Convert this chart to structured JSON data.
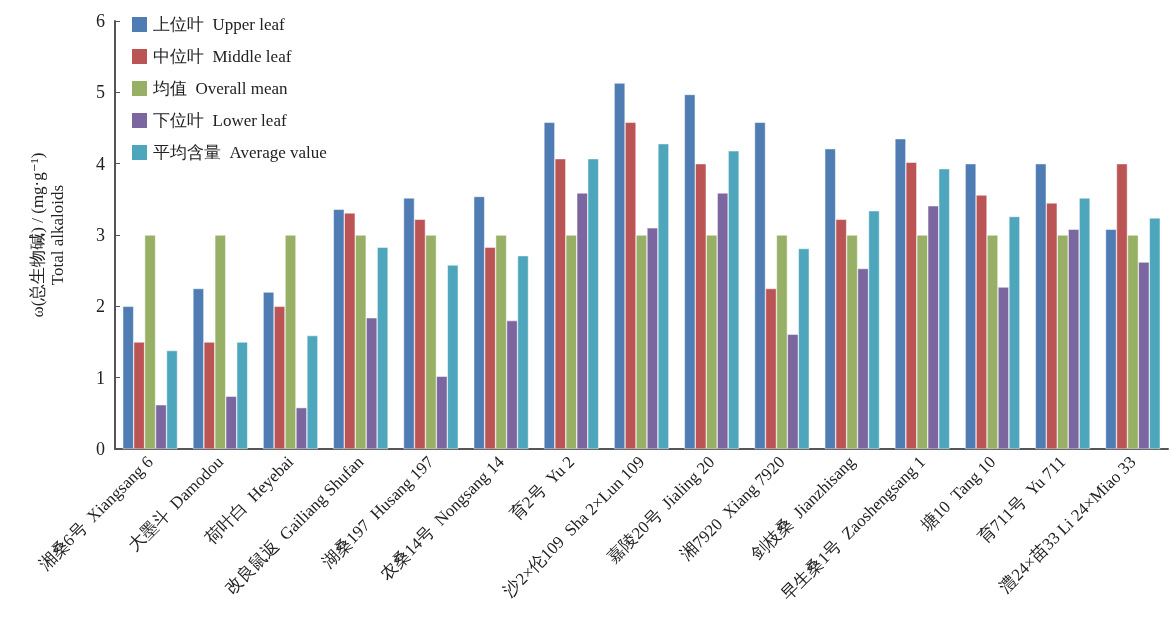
{
  "chart_data": {
    "type": "bar",
    "ylabel": "ω(总生物碱) / (mg·g⁻¹)\nTotal alkaloids",
    "categories": [
      "湘桑6号  Xiangsang 6",
      "大墨斗  Damodou",
      "荷叶白  Heyebai",
      "改良鼠返  Gailiang Shufan",
      "湖桑197  Husang 197",
      "农桑14号  Nongsang 14",
      "育2号  Yu 2",
      "沙2×伦109  Sha 2×Lun 109",
      "嘉陵20号  Jialing 20",
      "湘7920  Xiang 7920",
      "剑枝桑  Jianzhisang",
      "早生桑1号  Zaoshengsang 1",
      "塘10  Tang 10",
      "育711号  Yu 711",
      "澧24×苗33 Li 24×Miao 33"
    ],
    "series": [
      {
        "name": "上位叶  Upper leaf",
        "color": "#4f7db3",
        "values": [
          2.0,
          2.25,
          2.2,
          3.36,
          3.52,
          3.54,
          4.58,
          5.13,
          4.97,
          4.58,
          4.21,
          4.35,
          4.0,
          4.0,
          3.08
        ]
      },
      {
        "name": "中位叶  Middle leaf",
        "color": "#bb5455",
        "values": [
          1.5,
          1.5,
          2.0,
          3.31,
          3.22,
          2.83,
          4.07,
          4.58,
          4.0,
          2.25,
          3.22,
          4.02,
          3.56,
          3.45,
          4.0
        ]
      },
      {
        "name": "均值  Overall mean",
        "color": "#97b066",
        "values": [
          3,
          3,
          3,
          3,
          3,
          3,
          3,
          3,
          3,
          3,
          3,
          3,
          3,
          3,
          3
        ]
      },
      {
        "name": "下位叶  Lower leaf",
        "color": "#7b66a0",
        "values": [
          0.62,
          0.74,
          0.58,
          1.84,
          1.02,
          1.8,
          3.59,
          3.1,
          3.59,
          1.61,
          2.53,
          3.41,
          2.27,
          3.08,
          2.62
        ]
      },
      {
        "name": "平均含量  Average value",
        "color": "#4ea6bc",
        "values": [
          1.38,
          1.5,
          1.59,
          2.83,
          2.58,
          2.71,
          4.07,
          4.28,
          4.18,
          2.81,
          3.34,
          3.93,
          3.26,
          3.52,
          3.24
        ]
      }
    ],
    "ylim": [
      0,
      6
    ],
    "yticks": [
      0,
      1,
      2,
      3,
      4,
      5,
      6
    ],
    "grid": false,
    "legend": "top left"
  }
}
